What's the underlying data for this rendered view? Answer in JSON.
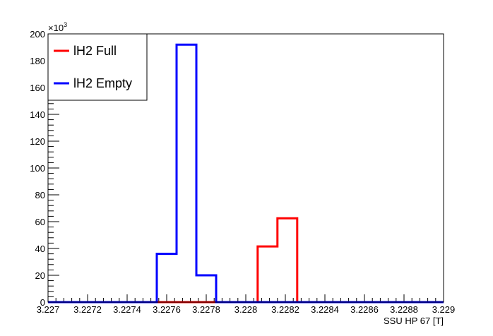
{
  "chart_data": {
    "type": "histogram",
    "xlabel": "SSU HP 67 [T]",
    "ylabel": "",
    "y_multiplier_label": "×10",
    "y_multiplier_exponent": "3",
    "xlim": [
      3.227,
      3.229
    ],
    "ylim": [
      0,
      200
    ],
    "x_ticks": [
      3.227,
      3.2272,
      3.2274,
      3.2276,
      3.2278,
      3.228,
      3.2282,
      3.2284,
      3.2286,
      3.2288,
      3.229
    ],
    "x_tick_labels": [
      "3.227",
      "3.2272",
      "3.2274",
      "3.2276",
      "3.2278",
      "3.228",
      "3.2282",
      "3.2284",
      "3.2286",
      "3.2288",
      "3.229"
    ],
    "y_ticks": [
      0,
      20,
      40,
      60,
      80,
      100,
      120,
      140,
      160,
      180,
      200
    ],
    "y_tick_labels": [
      "0",
      "20",
      "40",
      "60",
      "80",
      "100",
      "120",
      "140",
      "160",
      "180",
      "200"
    ],
    "legend_position": "top-left",
    "series": [
      {
        "name": "lH2 Full",
        "color": "#ff0000",
        "bins": [
          {
            "x0": 3.227,
            "x1": 3.22806,
            "y": 0
          },
          {
            "x0": 3.22806,
            "x1": 3.22816,
            "y": 41.5
          },
          {
            "x0": 3.22816,
            "x1": 3.22826,
            "y": 62.5
          },
          {
            "x0": 3.22826,
            "x1": 3.229,
            "y": 0
          }
        ]
      },
      {
        "name": "lH2 Empty",
        "color": "#0000ff",
        "bins": [
          {
            "x0": 3.227,
            "x1": 3.22755,
            "y": 0
          },
          {
            "x0": 3.22755,
            "x1": 3.22765,
            "y": 36
          },
          {
            "x0": 3.22765,
            "x1": 3.22775,
            "y": 192
          },
          {
            "x0": 3.22775,
            "x1": 3.22785,
            "y": 20
          },
          {
            "x0": 3.22785,
            "x1": 3.229,
            "y": 0
          }
        ]
      }
    ]
  }
}
